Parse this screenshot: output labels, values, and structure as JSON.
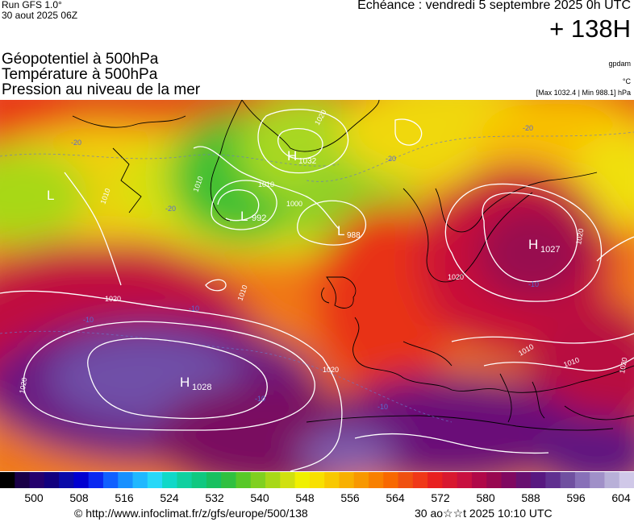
{
  "header": {
    "run": "Run GFS 1.0°",
    "run_date": "30 aout 2025 06Z",
    "echeance": "Echéance : vendredi 5 septembre 2025 0h UTC",
    "horizon": "+ 138H"
  },
  "layers": {
    "geopotential": "Géopotentiel à 500hPa",
    "temperature": "Température à 500hPa",
    "pressure": "Pression au niveau de la mer"
  },
  "units": {
    "geopotential": "gpdam",
    "temperature": "°C",
    "pressure_range": "[Max 1032.4 | Min 988.1] hPa"
  },
  "map": {
    "pressure_centers": [
      {
        "type": "H",
        "value": "1032"
      },
      {
        "type": "L",
        "value": "992"
      },
      {
        "type": "L",
        "value": "988"
      },
      {
        "type": "H",
        "value": "1027"
      },
      {
        "type": "H",
        "value": "1028"
      },
      {
        "type": "L",
        "value": ""
      }
    ],
    "isobar_labels": [
      "1020",
      "1010",
      "1000",
      "1010",
      "1010",
      "1020",
      "1010",
      "1020",
      "1020",
      "1020",
      "1010",
      "1010",
      "1020",
      "1020"
    ],
    "temperature_labels": [
      "-20",
      "-20",
      "-20",
      "-20",
      "-10",
      "-10",
      "-10",
      "-10",
      "-10"
    ]
  },
  "colorbar": {
    "ticks": [
      "500",
      "508",
      "516",
      "524",
      "532",
      "540",
      "548",
      "556",
      "564",
      "572",
      "580",
      "588",
      "596",
      "604"
    ],
    "colors": [
      "#000000",
      "#1a0048",
      "#24006e",
      "#12007e",
      "#0a0aa8",
      "#0000d0",
      "#0a28f0",
      "#1060ff",
      "#1890ff",
      "#20b8ff",
      "#28d8f8",
      "#10d8c8",
      "#10d0a0",
      "#10c880",
      "#18c060",
      "#30c040",
      "#58c828",
      "#80d020",
      "#a8d818",
      "#d0e010",
      "#f0f000",
      "#f8e000",
      "#f8c800",
      "#f8b000",
      "#f89800",
      "#f88000",
      "#f86800",
      "#f05010",
      "#f03818",
      "#e82020",
      "#d81830",
      "#c81040",
      "#b00848",
      "#980850",
      "#800860",
      "#681070",
      "#581880",
      "#603090",
      "#7050a0",
      "#8870b8",
      "#a090c8",
      "#b8b0d8",
      "#d0c8e8"
    ],
    "scale_colors": {
      "min": "#1a0048",
      "cold": "#0a28f0",
      "mid": "#20c840",
      "warm": "#f0f000",
      "hot": "#e82020",
      "max": "#580060"
    }
  },
  "footer": {
    "url": "© http://www.infoclimat.fr/z/gfs/europe/500/138",
    "timestamp": "30 ao☆☆t 2025 10:10 UTC"
  }
}
